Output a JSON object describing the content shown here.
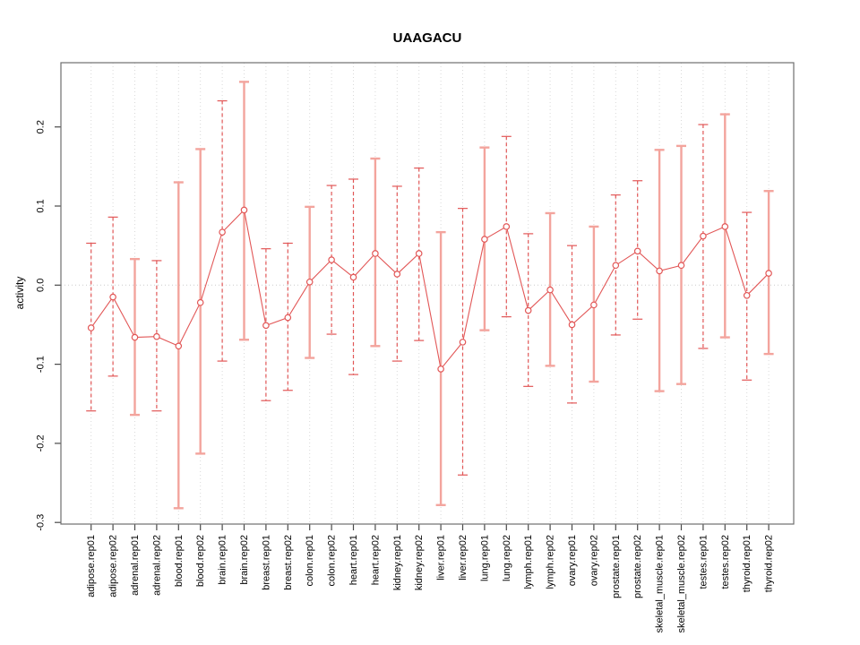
{
  "chart_data": {
    "type": "scatter",
    "subtype": "points-with-error-bars",
    "title": "UAAGACU",
    "xlabel": "",
    "ylabel": "activity",
    "ylim": [
      -0.3,
      0.28
    ],
    "grid": "dotted vertical line at every category; dotted horizontal line at 0",
    "legend_position": "none",
    "yticks": [
      {
        "value": 0.2,
        "label": "0.2"
      },
      {
        "value": 0.1,
        "label": "0.1"
      },
      {
        "value": 0.0,
        "label": "0.0"
      },
      {
        "value": -0.1,
        "label": "-0.1"
      },
      {
        "value": -0.2,
        "label": "-0.2"
      },
      {
        "value": -0.3,
        "label": "-0.3"
      }
    ],
    "categories": [
      "adipose.rep01",
      "adipose.rep02",
      "adrenal.rep01",
      "adrenal.rep02",
      "blood.rep01",
      "blood.rep02",
      "brain.rep01",
      "brain.rep02",
      "breast.rep01",
      "breast.rep02",
      "colon.rep01",
      "colon.rep02",
      "heart.rep01",
      "heart.rep02",
      "kidney.rep01",
      "kidney.rep02",
      "liver.rep01",
      "liver.rep02",
      "lung.rep01",
      "lung.rep02",
      "lymph.rep01",
      "lymph.rep02",
      "ovary.rep01",
      "ovary.rep02",
      "prostate.rep01",
      "prostate.rep02",
      "skeletal_muscle.rep01",
      "skeletal_muscle.rep02",
      "testes.rep01",
      "testes.rep02",
      "thyroid.rep01",
      "thyroid.rep02"
    ],
    "series": [
      {
        "name": "activity",
        "marker": "open-circle",
        "points": [
          {
            "label": "adipose.rep01",
            "value": -0.054,
            "lo": -0.159,
            "hi": 0.053,
            "bar": "dashed"
          },
          {
            "label": "adipose.rep02",
            "value": -0.015,
            "lo": -0.115,
            "hi": 0.086,
            "bar": "dashed"
          },
          {
            "label": "adrenal.rep01",
            "value": -0.066,
            "lo": -0.164,
            "hi": 0.033,
            "bar": "solid"
          },
          {
            "label": "adrenal.rep02",
            "value": -0.065,
            "lo": -0.159,
            "hi": 0.031,
            "bar": "dashed"
          },
          {
            "label": "blood.rep01",
            "value": -0.077,
            "lo": -0.282,
            "hi": 0.13,
            "bar": "solid"
          },
          {
            "label": "blood.rep02",
            "value": -0.022,
            "lo": -0.213,
            "hi": 0.172,
            "bar": "solid"
          },
          {
            "label": "brain.rep01",
            "value": 0.067,
            "lo": -0.096,
            "hi": 0.233,
            "bar": "dashed"
          },
          {
            "label": "brain.rep02",
            "value": 0.095,
            "lo": -0.069,
            "hi": 0.257,
            "bar": "solid"
          },
          {
            "label": "breast.rep01",
            "value": -0.051,
            "lo": -0.146,
            "hi": 0.046,
            "bar": "dashed"
          },
          {
            "label": "breast.rep02",
            "value": -0.041,
            "lo": -0.133,
            "hi": 0.053,
            "bar": "dashed"
          },
          {
            "label": "colon.rep01",
            "value": 0.004,
            "lo": -0.092,
            "hi": 0.099,
            "bar": "solid"
          },
          {
            "label": "colon.rep02",
            "value": 0.032,
            "lo": -0.062,
            "hi": 0.126,
            "bar": "dashed"
          },
          {
            "label": "heart.rep01",
            "value": 0.01,
            "lo": -0.113,
            "hi": 0.134,
            "bar": "dashed"
          },
          {
            "label": "heart.rep02",
            "value": 0.04,
            "lo": -0.077,
            "hi": 0.16,
            "bar": "solid"
          },
          {
            "label": "kidney.rep01",
            "value": 0.014,
            "lo": -0.096,
            "hi": 0.125,
            "bar": "dashed"
          },
          {
            "label": "kidney.rep02",
            "value": 0.04,
            "lo": -0.07,
            "hi": 0.148,
            "bar": "dashed"
          },
          {
            "label": "liver.rep01",
            "value": -0.106,
            "lo": -0.278,
            "hi": 0.067,
            "bar": "solid"
          },
          {
            "label": "liver.rep02",
            "value": -0.072,
            "lo": -0.24,
            "hi": 0.097,
            "bar": "dashed"
          },
          {
            "label": "lung.rep01",
            "value": 0.058,
            "lo": -0.057,
            "hi": 0.174,
            "bar": "solid"
          },
          {
            "label": "lung.rep02",
            "value": 0.074,
            "lo": -0.04,
            "hi": 0.188,
            "bar": "dashed"
          },
          {
            "label": "lymph.rep01",
            "value": -0.032,
            "lo": -0.128,
            "hi": 0.065,
            "bar": "dashed"
          },
          {
            "label": "lymph.rep02",
            "value": -0.006,
            "lo": -0.102,
            "hi": 0.091,
            "bar": "solid"
          },
          {
            "label": "ovary.rep01",
            "value": -0.05,
            "lo": -0.149,
            "hi": 0.05,
            "bar": "dashed"
          },
          {
            "label": "ovary.rep02",
            "value": -0.025,
            "lo": -0.122,
            "hi": 0.074,
            "bar": "solid"
          },
          {
            "label": "prostate.rep01",
            "value": 0.025,
            "lo": -0.063,
            "hi": 0.114,
            "bar": "dashed"
          },
          {
            "label": "prostate.rep02",
            "value": 0.043,
            "lo": -0.043,
            "hi": 0.132,
            "bar": "dashed"
          },
          {
            "label": "skeletal_muscle.rep01",
            "value": 0.018,
            "lo": -0.134,
            "hi": 0.171,
            "bar": "solid"
          },
          {
            "label": "skeletal_muscle.rep02",
            "value": 0.025,
            "lo": -0.125,
            "hi": 0.176,
            "bar": "solid"
          },
          {
            "label": "testes.rep01",
            "value": 0.062,
            "lo": -0.08,
            "hi": 0.203,
            "bar": "dashed"
          },
          {
            "label": "testes.rep02",
            "value": 0.074,
            "lo": -0.066,
            "hi": 0.216,
            "bar": "solid"
          },
          {
            "label": "thyroid.rep01",
            "value": -0.013,
            "lo": -0.12,
            "hi": 0.092,
            "bar": "dashed"
          },
          {
            "label": "thyroid.rep02",
            "value": 0.015,
            "lo": -0.087,
            "hi": 0.119,
            "bar": "solid"
          }
        ]
      }
    ],
    "colors": {
      "point": "#e25757",
      "connect_line": "#e25757",
      "dashed_bar": "#e25757",
      "solid_bar": "#f3a49d",
      "grid": "#d9d9d9",
      "zero_line": "#cccccc",
      "frame": "#6e6e6e",
      "tick": "#4a4a4a",
      "text": "#000000",
      "background": "#ffffff"
    }
  }
}
